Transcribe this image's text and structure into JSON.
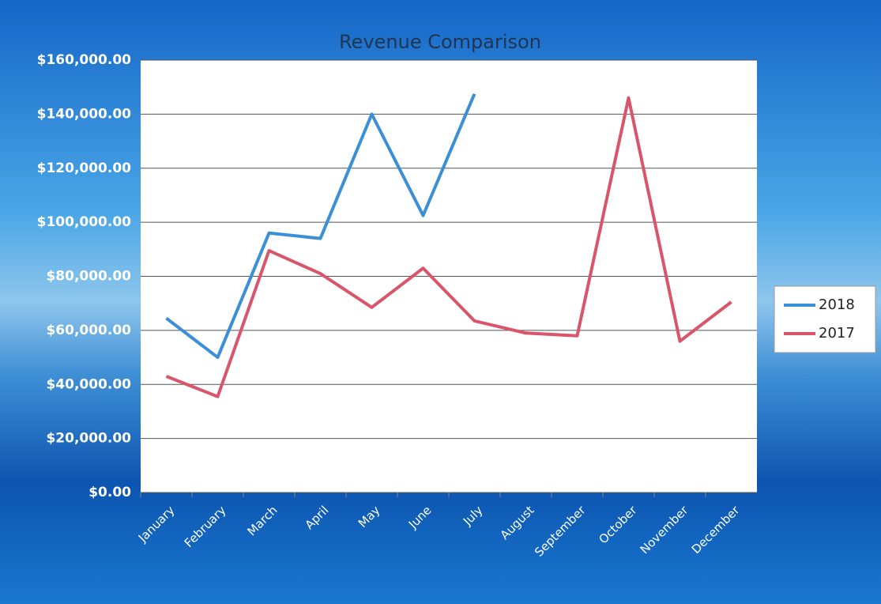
{
  "chart_data": {
    "type": "line",
    "title": "Revenue Comparison",
    "categories": [
      "January",
      "February",
      "March",
      "April",
      "May",
      "June",
      "July",
      "August",
      "September",
      "October",
      "November",
      "December"
    ],
    "series": [
      {
        "name": "2018",
        "color": "#3a8fd6",
        "values": [
          64500,
          50000,
          96000,
          94000,
          140000,
          102500,
          147500,
          null,
          null,
          null,
          null,
          null
        ]
      },
      {
        "name": "2017",
        "color": "#d9566a",
        "values": [
          43000,
          35500,
          89500,
          81000,
          68500,
          83000,
          63500,
          59000,
          58000,
          146000,
          56000,
          70500
        ]
      }
    ],
    "ylim": [
      0,
      160000
    ],
    "yticks": [
      {
        "value": 0,
        "label": "$0.00"
      },
      {
        "value": 20000,
        "label": "$20,000.00"
      },
      {
        "value": 40000,
        "label": "$40,000.00"
      },
      {
        "value": 60000,
        "label": "$60,000.00"
      },
      {
        "value": 80000,
        "label": "$80,000.00"
      },
      {
        "value": 100000,
        "label": "$100,000.00"
      },
      {
        "value": 120000,
        "label": "$120,000.00"
      },
      {
        "value": 140000,
        "label": "$140,000.00"
      },
      {
        "value": 160000,
        "label": "$160,000.00"
      }
    ],
    "grid": true,
    "legend": "right"
  }
}
